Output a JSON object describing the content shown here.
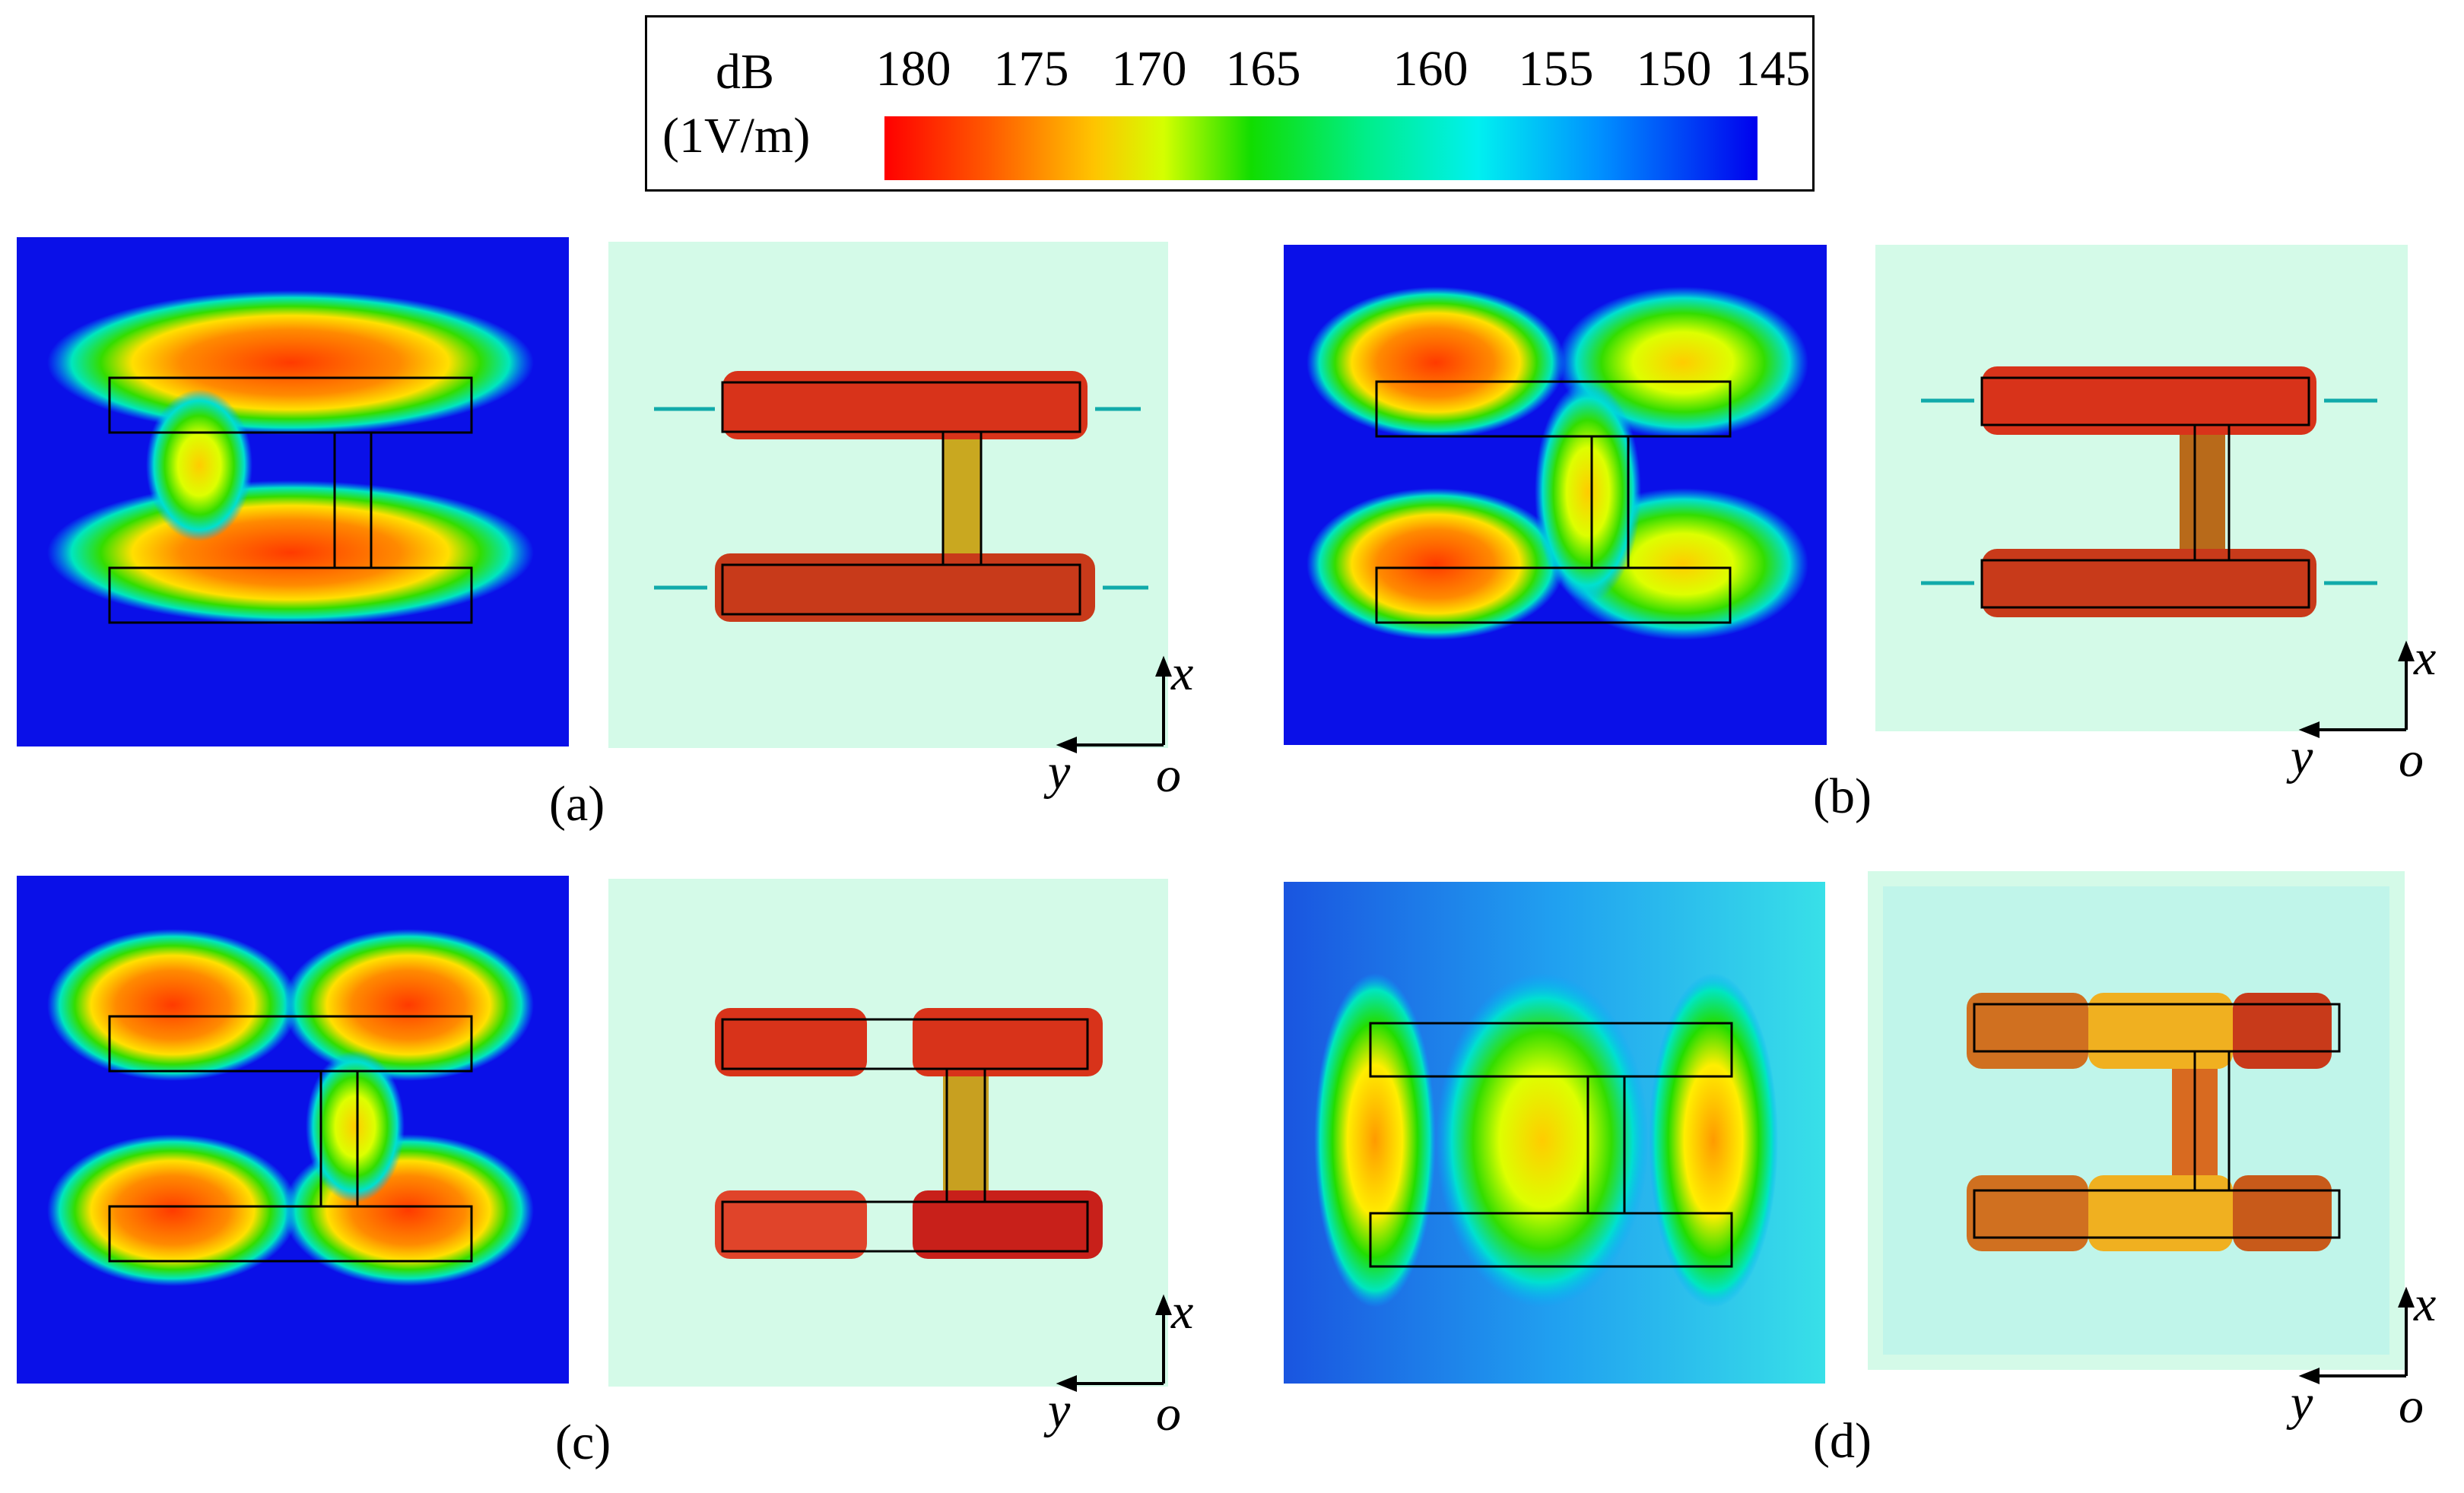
{
  "legend": {
    "unit_line1": "dB",
    "unit_line2": "(1V/m)",
    "ticks": [
      "180",
      "175",
      "170",
      "165",
      "160",
      "155",
      "150",
      "145"
    ],
    "colors": [
      "#ff0000",
      "#ff6600",
      "#ffcc00",
      "#ccff00",
      "#22dd00",
      "#00ee99",
      "#00eeee",
      "#0088ff",
      "#0000ee"
    ]
  },
  "panels": [
    {
      "label": "(a)"
    },
    {
      "label": "(b)"
    },
    {
      "label": "(c)"
    },
    {
      "label": "(d)"
    }
  ],
  "axes": {
    "x": "x",
    "y": "y",
    "origin": "o"
  }
}
